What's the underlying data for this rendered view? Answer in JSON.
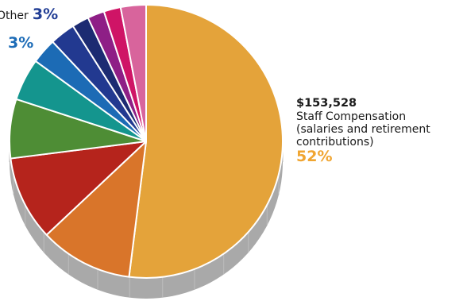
{
  "chart_data": {
    "type": "pie",
    "style": "3d-exploded-edge",
    "slices": [
      {
        "label": "Staff Compensation (salaries and retirement contributions)",
        "amount": "$153,528",
        "value": 52,
        "color": "#E4A33A"
      },
      {
        "label": "",
        "value": 11,
        "color": "#D9752A"
      },
      {
        "label": "",
        "value": 10,
        "color": "#B5241C"
      },
      {
        "label": "",
        "value": 7,
        "color": "#4E8D35"
      },
      {
        "label": "",
        "value": 5,
        "color": "#14958E"
      },
      {
        "label": "",
        "value": 3,
        "color": "#1C6BB5"
      },
      {
        "label": "",
        "value": 3,
        "color": "#223990"
      },
      {
        "label": "",
        "value": 2,
        "color": "#1C2B72"
      },
      {
        "label": "",
        "value": 2,
        "color": "#8E1F86"
      },
      {
        "label": "",
        "value": 2,
        "color": "#CF1466"
      },
      {
        "label": "Other",
        "value": 3,
        "color": "#D8649C"
      }
    ],
    "annotations": {
      "staff": {
        "amount": "$153,528",
        "line1": "Staff Compensation",
        "line2": "(salaries and retirement",
        "line3": "contributions)",
        "percent": "52%",
        "color": "#F0A531"
      },
      "other": {
        "name": "Other",
        "percent": "3%",
        "color": "#223E95"
      },
      "left_slice": {
        "percent": "3%",
        "color": "#1D6CB7"
      }
    },
    "edge_color": "#A9A9A9"
  }
}
